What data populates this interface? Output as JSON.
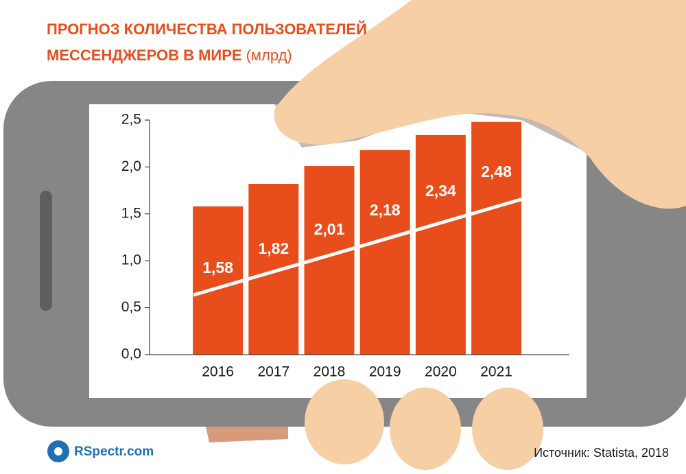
{
  "chart_data": {
    "type": "bar",
    "title": [
      "ПРОГНОЗ КОЛИЧЕСТВА ПОЛЬЗОВАТЕЛЕЙ",
      "МЕССЕНДЖЕРОВ В МИРЕ"
    ],
    "unit": "(млрд)",
    "categories": [
      "2016",
      "2017",
      "2018",
      "2019",
      "2020",
      "2021"
    ],
    "values": [
      1.58,
      1.82,
      2.01,
      2.18,
      2.34,
      2.48
    ],
    "value_labels": [
      "1,58",
      "1,82",
      "2,01",
      "2,18",
      "2,34",
      "2,48"
    ],
    "color": "#e84e1b",
    "ylim": [
      0,
      2.5
    ],
    "yticks": [
      {
        "value": 0,
        "label": "0,0"
      },
      {
        "value": 0.5,
        "label": "0,5"
      },
      {
        "value": 1,
        "label": "1,0"
      },
      {
        "value": 1.5,
        "label": "1,5"
      },
      {
        "value": 2,
        "label": "2,0"
      },
      {
        "value": 2.5,
        "label": "2,5"
      }
    ],
    "source": "Источник: Statista, 2018",
    "logo": "RSpectr.com"
  }
}
